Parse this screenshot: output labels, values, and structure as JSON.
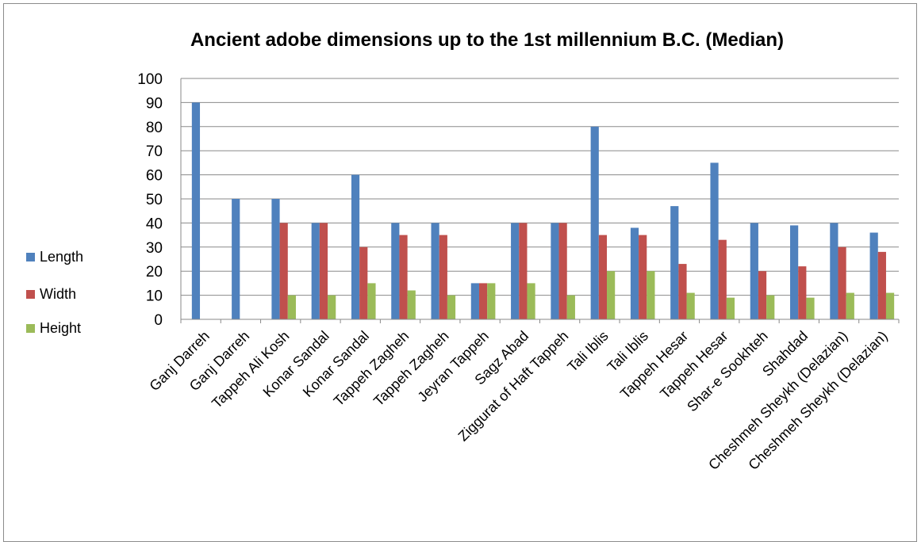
{
  "chart_data": {
    "type": "bar",
    "title": "Ancient adobe dimensions up to the 1st millennium B.C. (Median)",
    "xlabel": "",
    "ylabel": "",
    "ylim": [
      0,
      100
    ],
    "yticks": [
      0,
      10,
      20,
      30,
      40,
      50,
      60,
      70,
      80,
      90,
      100
    ],
    "grid": true,
    "legend_position": "left",
    "categories": [
      "Ganj Darreh",
      "Ganj Darreh",
      "Tappeh Ali Kosh",
      "Konar Sandal",
      "Konar Sandal",
      "Tappeh Zagheh",
      "Tappeh Zagheh",
      "Jeyran Tappeh",
      "Sagz Abad",
      "Ziggurat of Haft Tappeh",
      "Tali Iblis",
      "Tali Iblis",
      "Tappeh Hesar",
      "Tappeh Hesar",
      "Shar-e Sookhteh",
      "Shahdad",
      "Cheshmeh Sheykh (Delazian)",
      "Cheshmeh Sheykh (Delazian)"
    ],
    "series": [
      {
        "name": "Length",
        "color": "#4f81bd",
        "values": [
          90,
          50,
          50,
          40,
          60,
          40,
          40,
          15,
          40,
          40,
          80,
          38,
          47,
          65,
          40,
          39,
          40,
          36
        ]
      },
      {
        "name": "Width",
        "color": "#c0504d",
        "values": [
          0,
          0,
          40,
          40,
          30,
          35,
          35,
          15,
          40,
          40,
          35,
          35,
          23,
          33,
          20,
          22,
          30,
          28
        ]
      },
      {
        "name": "Height",
        "color": "#9bbb59",
        "values": [
          0,
          0,
          10,
          10,
          15,
          12,
          10,
          15,
          15,
          10,
          20,
          20,
          11,
          9,
          10,
          9,
          11,
          11
        ]
      }
    ]
  }
}
